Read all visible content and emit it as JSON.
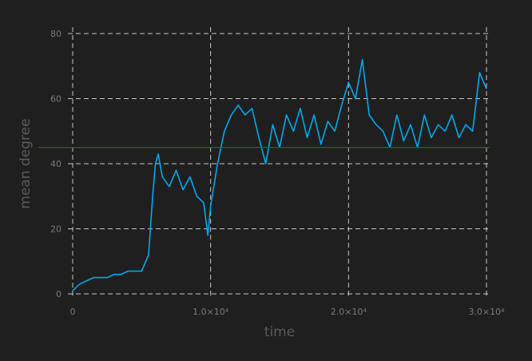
{
  "chart_data": {
    "type": "line",
    "title": "",
    "xlabel": "time",
    "ylabel": "mean degree",
    "xlim": [
      0,
      30000
    ],
    "ylim": [
      0,
      80
    ],
    "x_ticks": [
      0,
      10000,
      20000,
      30000
    ],
    "x_tick_labels": [
      "0",
      "1.0×10⁴",
      "2.0×10⁴",
      "3.0×10⁴"
    ],
    "y_ticks": [
      0,
      20,
      40,
      60,
      80
    ],
    "y_tick_labels": [
      "0",
      "20",
      "40",
      "60",
      "80"
    ],
    "grid": true,
    "background": "#1f1f1f",
    "series": [
      {
        "color": "#00aaee",
        "x": [
          0,
          500,
          1000,
          1500,
          2000,
          2500,
          3000,
          3500,
          4000,
          4500,
          5000,
          5500,
          5800,
          6000,
          6200,
          6500,
          7000,
          7500,
          8000,
          8500,
          9000,
          9500,
          9800,
          10000,
          10500,
          11000,
          11500,
          12000,
          12500,
          13000,
          13500,
          14000,
          14500,
          15000,
          15500,
          16000,
          16500,
          17000,
          17500,
          18000,
          18500,
          19000,
          19500,
          20000,
          20500,
          21000,
          21500,
          22000,
          22500,
          23000,
          23500,
          24000,
          24500,
          25000,
          25500,
          26000,
          26500,
          27000,
          27500,
          28000,
          28500,
          29000,
          29500,
          30000
        ],
        "y": [
          1,
          3,
          4,
          5,
          5,
          5,
          6,
          6,
          7,
          7,
          7,
          12,
          30,
          40,
          43,
          36,
          33,
          38,
          32,
          36,
          30,
          28,
          18,
          27,
          40,
          50,
          55,
          58,
          55,
          57,
          48,
          40,
          52,
          45,
          55,
          50,
          57,
          48,
          55,
          46,
          53,
          50,
          58,
          65,
          60,
          72,
          55,
          52,
          50,
          45,
          55,
          47,
          52,
          45,
          55,
          48,
          52,
          50,
          55,
          48,
          52,
          50,
          68,
          63
        ]
      },
      {
        "color": "#007a1f",
        "x": [
          -2500,
          30200
        ],
        "y": [
          45,
          45
        ]
      }
    ]
  }
}
